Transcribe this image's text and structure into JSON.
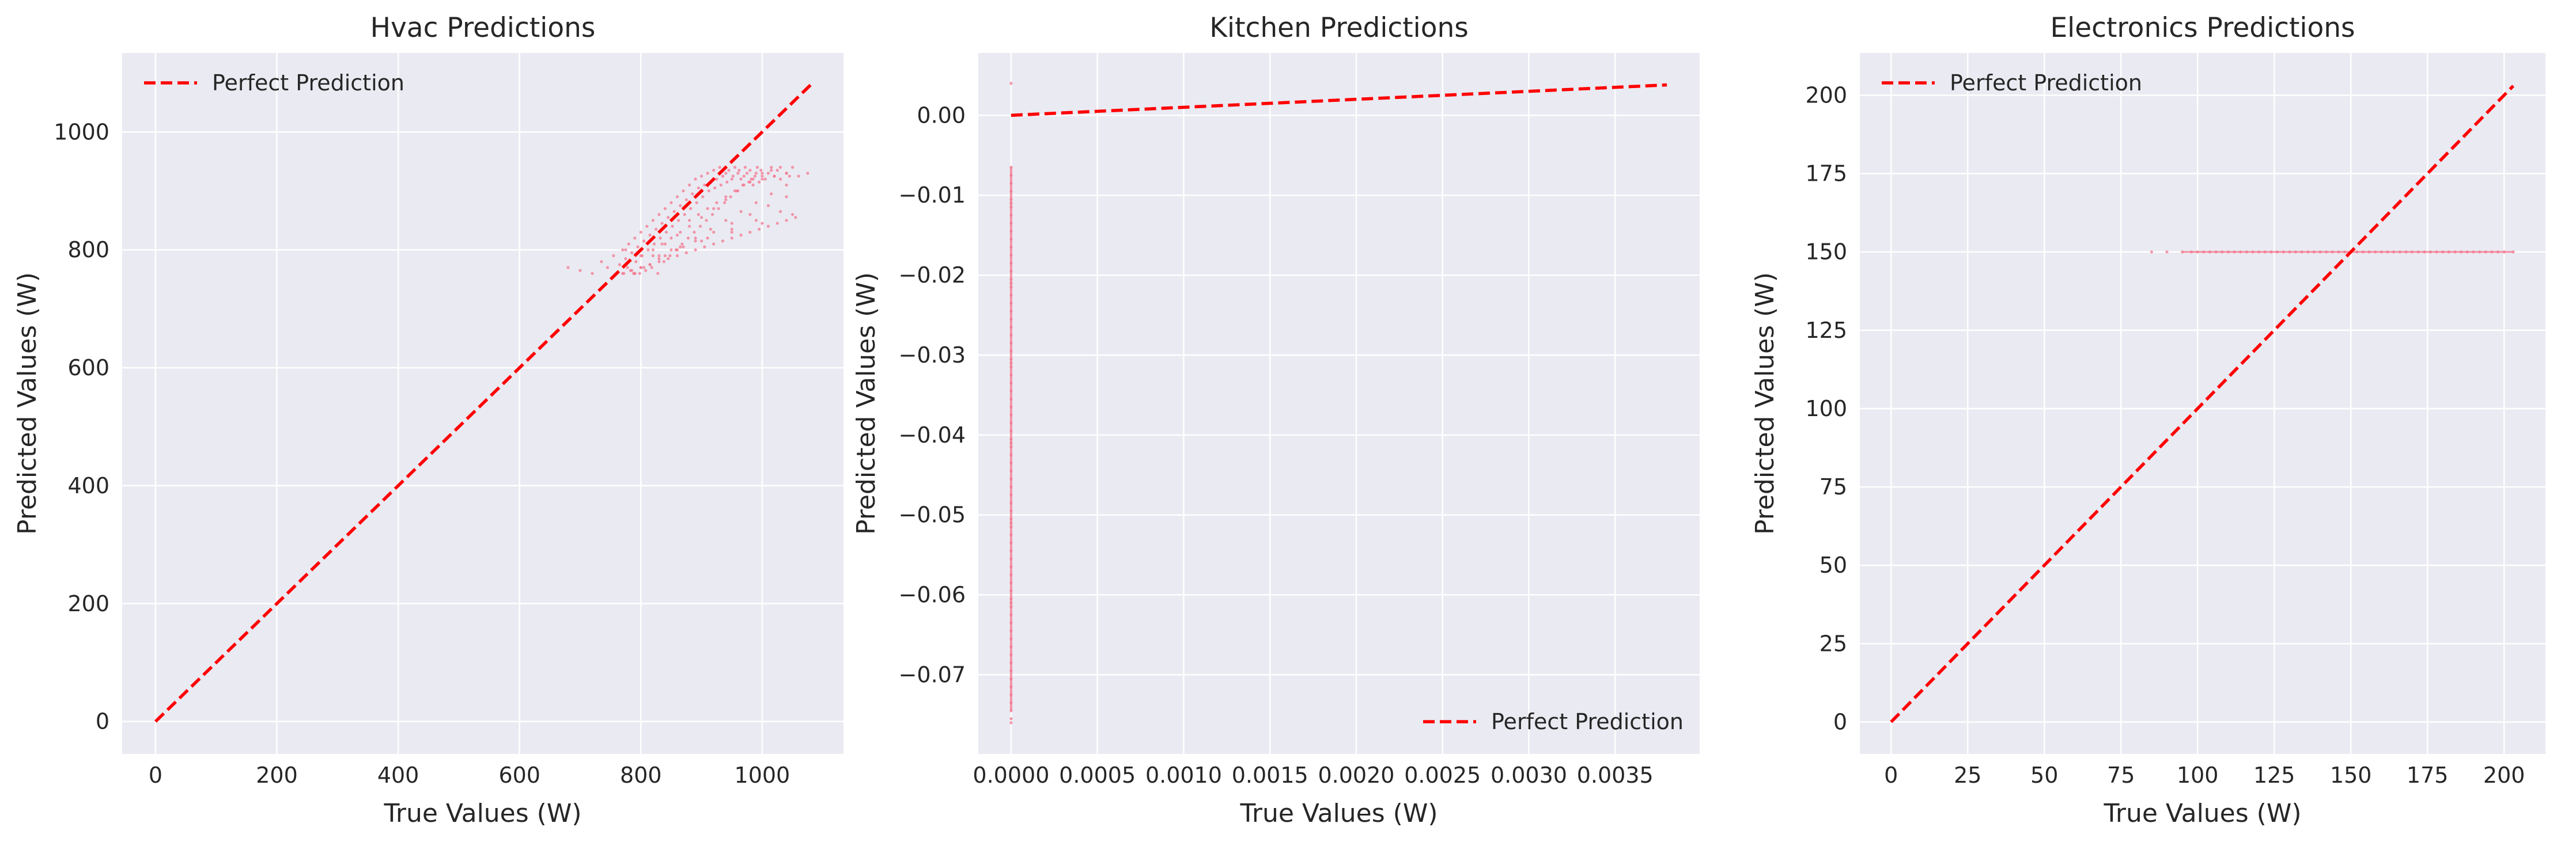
{
  "chart_data": [
    {
      "type": "scatter",
      "title": "Hvac Predictions",
      "xlabel": "True Values (W)",
      "ylabel": "Predicted Values (W)",
      "xlim": [
        -55,
        1134
      ],
      "ylim": [
        -55,
        1134
      ],
      "xticks": [
        0,
        200,
        400,
        600,
        800,
        1000
      ],
      "yticks": [
        0,
        200,
        400,
        600,
        800,
        1000
      ],
      "xtick_labels": [
        "0",
        "200",
        "400",
        "600",
        "800",
        "1000"
      ],
      "ytick_labels": [
        "0",
        "200",
        "400",
        "600",
        "800",
        "1000"
      ],
      "grid": true,
      "legend_position": "top-left",
      "series": [
        {
          "name": "Perfect Prediction",
          "style": "dashed-line",
          "color": "#ff0000",
          "x": [
            0,
            1080
          ],
          "y": [
            0,
            1080
          ]
        }
      ],
      "points": {
        "color": "#f2788f",
        "x": [
          680,
          700,
          720,
          735,
          745,
          755,
          760,
          765,
          770,
          772,
          775,
          778,
          780,
          783,
          785,
          788,
          790,
          792,
          795,
          798,
          800,
          802,
          805,
          808,
          810,
          812,
          815,
          818,
          820,
          822,
          825,
          828,
          830,
          832,
          835,
          838,
          840,
          842,
          845,
          848,
          850,
          852,
          855,
          858,
          860,
          862,
          865,
          868,
          870,
          872,
          875,
          878,
          880,
          882,
          885,
          888,
          890,
          892,
          895,
          898,
          900,
          902,
          905,
          908,
          910,
          912,
          915,
          918,
          920,
          922,
          925,
          928,
          930,
          932,
          935,
          938,
          940,
          942,
          945,
          948,
          950,
          952,
          955,
          958,
          960,
          962,
          965,
          968,
          970,
          972,
          975,
          978,
          980,
          982,
          985,
          988,
          990,
          992,
          995,
          998,
          1000,
          1005,
          1010,
          1015,
          1020,
          1025,
          1030,
          1040,
          1050,
          1060,
          1075,
          775,
          790,
          805,
          820,
          835,
          850,
          865,
          880,
          895,
          910,
          925,
          940,
          955,
          970,
          985,
          1000,
          1015,
          1030,
          1045,
          780,
          800,
          820,
          840,
          860,
          880,
          900,
          920,
          940,
          960,
          980,
          1000,
          1020,
          1040,
          790,
          815,
          840,
          865,
          890,
          915,
          940,
          965,
          990,
          1015,
          1040,
          800,
          830,
          860,
          890,
          920,
          950,
          980,
          1010,
          1040,
          830,
          870,
          910,
          950,
          990,
          1030,
          850,
          900,
          950,
          1000,
          1050,
          770,
          785,
          800,
          815,
          830,
          845,
          860,
          875,
          890,
          905,
          920,
          935,
          950,
          965,
          980,
          995,
          1010,
          1025,
          1040,
          1055
        ],
        "y": [
          770,
          765,
          760,
          780,
          770,
          790,
          760,
          775,
          800,
          760,
          785,
          770,
          810,
          765,
          795,
          760,
          820,
          780,
          805,
          760,
          830,
          790,
          815,
          765,
          840,
          800,
          825,
          770,
          850,
          810,
          835,
          760,
          860,
          820,
          845,
          780,
          870,
          830,
          855,
          790,
          880,
          840,
          865,
          800,
          890,
          850,
          875,
          810,
          900,
          860,
          885,
          820,
          910,
          870,
          895,
          830,
          920,
          880,
          905,
          840,
          925,
          890,
          910,
          850,
          930,
          900,
          915,
          860,
          935,
          905,
          920,
          870,
          940,
          910,
          925,
          880,
          930,
          915,
          935,
          890,
          920,
          925,
          940,
          900,
          930,
          935,
          920,
          910,
          925,
          940,
          930,
          915,
          935,
          920,
          910,
          925,
          930,
          940,
          915,
          935,
          925,
          920,
          930,
          940,
          925,
          935,
          920,
          930,
          940,
          925,
          930,
          800,
          760,
          770,
          790,
          810,
          820,
          830,
          850,
          860,
          870,
          880,
          890,
          900,
          910,
          920,
          930,
          935,
          940,
          925,
          780,
          790,
          800,
          810,
          825,
          840,
          855,
          870,
          885,
          900,
          915,
          920,
          925,
          930,
          760,
          775,
          790,
          805,
          820,
          835,
          850,
          865,
          880,
          895,
          910,
          770,
          785,
          800,
          815,
          830,
          845,
          860,
          875,
          890,
          790,
          805,
          820,
          835,
          850,
          865,
          800,
          815,
          830,
          845,
          860,
          760,
          765,
          770,
          775,
          780,
          785,
          790,
          795,
          800,
          805,
          810,
          815,
          820,
          825,
          830,
          835,
          840,
          845,
          850,
          855
        ]
      }
    },
    {
      "type": "scatter",
      "title": "Kitchen Predictions",
      "xlabel": "True Values (W)",
      "ylabel": "Predicted Values (W)",
      "xlim": [
        -0.00019,
        0.00399
      ],
      "ylim": [
        -0.0799,
        0.0078
      ],
      "xticks": [
        0,
        0.0005,
        0.001,
        0.0015,
        0.002,
        0.0025,
        0.003,
        0.0035
      ],
      "yticks": [
        0,
        -0.01,
        -0.02,
        -0.03,
        -0.04,
        -0.05,
        -0.06,
        -0.07
      ],
      "xtick_labels": [
        "0.0000",
        "0.0005",
        "0.0010",
        "0.0015",
        "0.0020",
        "0.0025",
        "0.0030",
        "0.0035"
      ],
      "ytick_labels": [
        "0.00",
        "−0.01",
        "−0.02",
        "−0.03",
        "−0.04",
        "−0.05",
        "−0.06",
        "−0.07"
      ],
      "grid": true,
      "legend_position": "bottom-right",
      "series": [
        {
          "name": "Perfect Prediction",
          "style": "dashed-line",
          "color": "#ff0000",
          "x": [
            0,
            0.0038
          ],
          "y": [
            0,
            0.0038
          ]
        }
      ],
      "points": {
        "color": "#f2788f",
        "x": [
          0,
          0,
          0,
          0,
          0,
          0,
          0,
          0,
          0,
          0,
          0,
          0,
          0,
          0,
          0,
          0,
          0,
          0,
          0,
          0,
          0,
          0,
          0,
          0,
          0,
          0,
          0,
          0,
          0,
          0,
          0,
          0,
          0,
          0,
          0,
          0,
          0,
          0,
          0,
          0,
          0,
          0,
          0,
          0,
          0,
          0,
          0,
          0,
          0,
          0,
          0,
          0,
          0,
          0,
          0,
          0,
          0,
          0,
          0,
          0,
          0,
          0,
          0,
          0,
          0,
          0,
          0,
          0,
          0,
          0,
          0,
          0,
          0,
          0,
          0,
          0,
          0,
          0
        ],
        "y": [
          0.004,
          -0.0065,
          -0.0075,
          -0.0085,
          -0.0095,
          -0.0105,
          -0.0115,
          -0.0125,
          -0.0135,
          -0.0145,
          -0.0155,
          -0.0165,
          -0.0175,
          -0.0185,
          -0.0195,
          -0.0205,
          -0.0215,
          -0.0225,
          -0.0235,
          -0.0245,
          -0.0255,
          -0.0265,
          -0.0275,
          -0.0285,
          -0.0295,
          -0.0305,
          -0.0315,
          -0.0325,
          -0.0335,
          -0.0345,
          -0.0355,
          -0.0365,
          -0.0375,
          -0.0385,
          -0.0395,
          -0.0405,
          -0.0415,
          -0.0425,
          -0.0435,
          -0.0445,
          -0.0455,
          -0.0465,
          -0.0475,
          -0.0485,
          -0.0495,
          -0.0505,
          -0.0515,
          -0.0525,
          -0.0535,
          -0.0545,
          -0.0555,
          -0.0565,
          -0.0575,
          -0.0585,
          -0.0595,
          -0.0605,
          -0.0615,
          -0.0625,
          -0.0635,
          -0.0645,
          -0.0655,
          -0.0665,
          -0.0675,
          -0.0685,
          -0.0695,
          -0.0705,
          -0.0715,
          -0.0725,
          -0.0735,
          -0.0745,
          -0.0755,
          -0.076,
          -0.011,
          -0.021,
          -0.031,
          -0.041,
          -0.051,
          -0.061
        ]
      }
    },
    {
      "type": "scatter",
      "title": "Electronics Predictions",
      "xlabel": "True Values (W)",
      "ylabel": "Predicted Values (W)",
      "xlim": [
        -10.2,
        213.5
      ],
      "ylim": [
        -10.2,
        213.5
      ],
      "xticks": [
        0,
        25,
        50,
        75,
        100,
        125,
        150,
        175,
        200
      ],
      "yticks": [
        0,
        25,
        50,
        75,
        100,
        125,
        150,
        175,
        200
      ],
      "xtick_labels": [
        "0",
        "25",
        "50",
        "75",
        "100",
        "125",
        "150",
        "175",
        "200"
      ],
      "ytick_labels": [
        "0",
        "25",
        "50",
        "75",
        "100",
        "125",
        "150",
        "175",
        "200"
      ],
      "grid": true,
      "legend_position": "top-left",
      "series": [
        {
          "name": "Perfect Prediction",
          "style": "dashed-line",
          "color": "#ff0000",
          "x": [
            0,
            203
          ],
          "y": [
            0,
            203
          ]
        }
      ],
      "points": {
        "color": "#f2788f",
        "x": [
          85,
          90,
          95,
          98,
          100,
          102,
          104,
          106,
          108,
          110,
          112,
          114,
          116,
          118,
          120,
          122,
          124,
          126,
          128,
          130,
          132,
          134,
          136,
          138,
          140,
          142,
          144,
          146,
          148,
          150,
          152,
          154,
          156,
          158,
          160,
          162,
          164,
          166,
          168,
          170,
          172,
          174,
          176,
          178,
          180,
          182,
          184,
          186,
          188,
          190,
          192,
          194,
          196,
          198,
          200,
          203
        ],
        "y": [
          150,
          150,
          150,
          150,
          150,
          150,
          150,
          150,
          150,
          150,
          150,
          150,
          150,
          150,
          150,
          150,
          150,
          150,
          150,
          150,
          150,
          150,
          150,
          150,
          150,
          150,
          150,
          150,
          150,
          150,
          150,
          150,
          150,
          150,
          150,
          150,
          150,
          150,
          150,
          150,
          150,
          150,
          150,
          150,
          150,
          150,
          150,
          150,
          150,
          150,
          150,
          150,
          150,
          150,
          150,
          150
        ]
      }
    }
  ]
}
